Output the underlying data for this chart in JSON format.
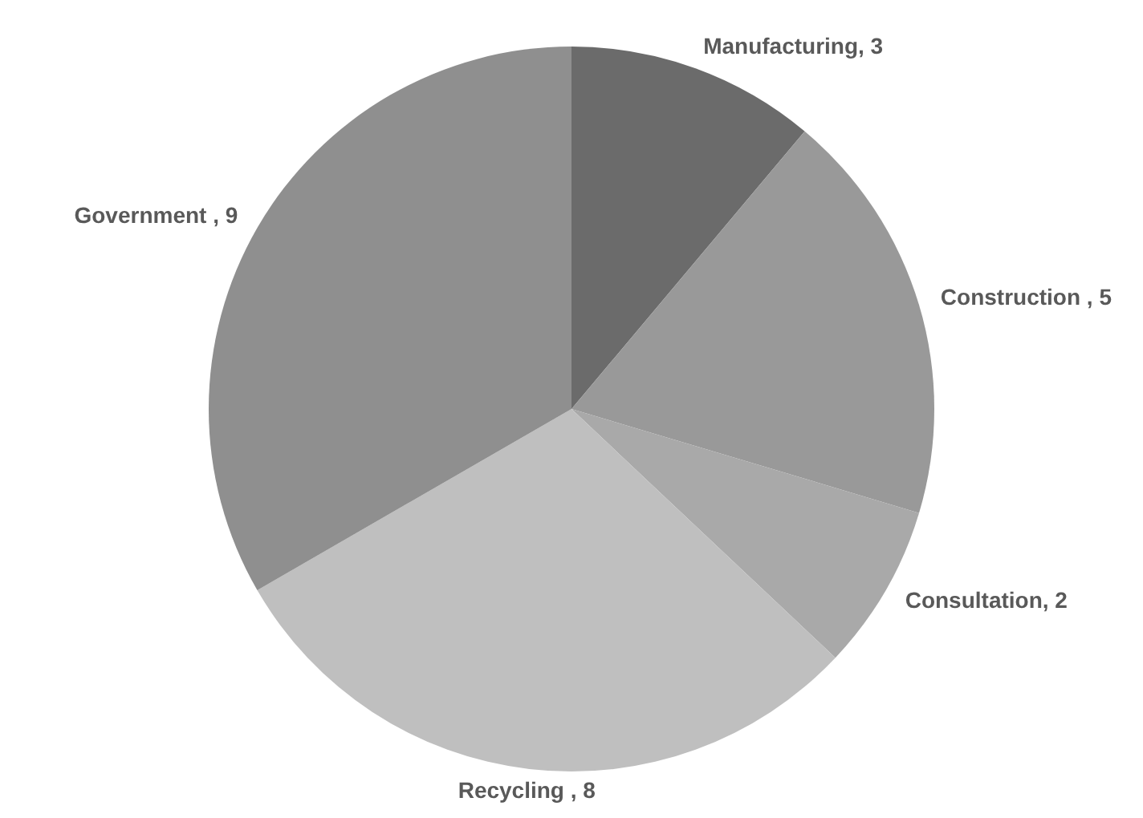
{
  "chart_data": {
    "type": "pie",
    "categories": [
      "Manufacturing, 3",
      "Construction , 5",
      "Consultation, 2",
      "Recycling , 8",
      "Government , 9"
    ],
    "values": [
      3,
      5,
      2,
      8,
      9
    ],
    "colors": [
      "#6b6b6b",
      "#999999",
      "#a9a9a9",
      "#bfbfbf",
      "#8f8f8f"
    ],
    "legend": false
  }
}
